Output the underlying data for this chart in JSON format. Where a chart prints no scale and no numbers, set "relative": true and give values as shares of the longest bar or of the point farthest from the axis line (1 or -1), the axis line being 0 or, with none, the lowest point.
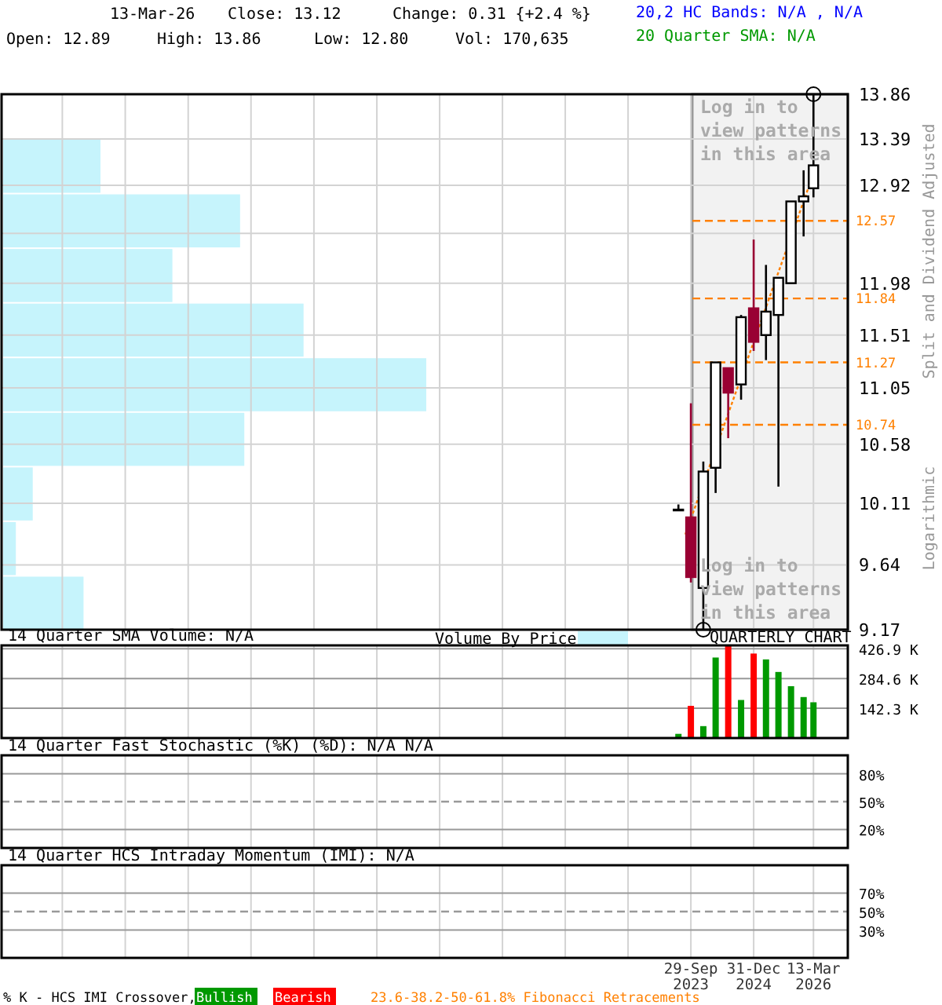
{
  "chart_data": [
    {
      "type": "candlestick",
      "ylabel": "Split and Dividend Adjusted",
      "log": true,
      "ylim": [
        9.17,
        13.86
      ],
      "yticks": [
        13.86,
        13.39,
        12.92,
        {
          "value": 12.45,
          "label": null
        },
        11.98,
        11.51,
        11.05,
        10.58,
        10.11,
        9.64,
        9.17
      ],
      "xlim": [
        "2009-12-13",
        "2026-11-19"
      ],
      "xticks": [
        {
          "value": "2011-03-02",
          "label": null
        },
        {
          "value": "2012-06-04",
          "label": null
        },
        {
          "value": "2013-09-07",
          "label": null
        },
        {
          "value": "2014-12-10",
          "label": null
        },
        {
          "value": "2016-03-14",
          "label": null
        },
        {
          "value": "2017-06-17",
          "label": null
        },
        {
          "value": "2018-09-19",
          "label": null
        },
        {
          "value": "2019-12-22",
          "label": null
        },
        {
          "value": "2021-03-25",
          "label": null
        },
        {
          "value": "2022-06-27",
          "label": null
        },
        {
          "value": "2023-09-29",
          "label": null
        },
        {
          "value": "2024-12-31",
          "label": null
        },
        {
          "value": "2026-03-13",
          "label": null
        }
      ],
      "tick_labels": "y",
      "grid": true,
      "annotations": [
        "13-Mar-26",
        "Close: 13.12",
        "Change: 0.31 {+2.4 %}",
        "Open: 12.89",
        "High: 13.86",
        "Low: 12.80",
        "Vol: 170,635",
        "20,2 HC Bands: N/A , N/A",
        "20 Quarter SMA: N/A",
        "Log in to view patterns in this area",
        "Logarithmic"
      ],
      "bands": [
        {
          "axis": "x",
          "from": "2023-10-10",
          "to": "2026-11-19",
          "label": "Log in to view patterns in this area",
          "color": "#f2f2f2"
        }
      ],
      "ref_lines": [
        {
          "axis": "y",
          "value": 12.57,
          "label": "12.57",
          "color": "#ff8000",
          "line_style": "dashed"
        },
        {
          "axis": "y",
          "value": 11.84,
          "label": "11.84",
          "color": "#ff8000",
          "line_style": "dashed"
        },
        {
          "axis": "y",
          "value": 11.27,
          "label": "11.27",
          "color": "#ff8000",
          "line_style": "dashed"
        },
        {
          "axis": "y",
          "value": 10.74,
          "label": "10.74",
          "color": "#ff8000",
          "line_style": "dashed"
        }
      ],
      "series": [
        {
          "type": "line",
          "x": [
            "2023-08-20",
            "2026-02-08"
          ],
          "values": [
            9.87,
            12.91
          ],
          "color": "#ff8000",
          "line_style": "dotted",
          "marker": "none"
        },
        {
          "x": [
            "2023-06-30",
            "2023-09-29",
            "2023-12-29",
            "2024-03-28",
            "2024-06-28",
            "2024-09-30",
            "2024-12-31",
            "2025-03-31",
            "2025-06-30",
            "2025-09-30",
            "2025-12-31",
            "2026-03-13"
          ],
          "ohlc": [
            [
              10.06,
              10.1,
              10.06,
              10.06
            ],
            [
              10.0,
              10.92,
              9.51,
              9.55
            ],
            [
              9.47,
              10.44,
              9.17,
              10.36
            ],
            [
              10.39,
              11.27,
              10.19,
              11.27
            ],
            [
              11.22,
              11.22,
              10.63,
              11.01
            ],
            [
              11.08,
              11.69,
              10.95,
              11.67
            ],
            [
              11.75,
              12.39,
              11.37,
              11.45
            ],
            [
              11.51,
              12.15,
              11.29,
              11.72
            ],
            [
              11.69,
              12.03,
              10.24,
              12.03
            ],
            [
              11.98,
              12.76,
              11.98,
              12.76
            ],
            [
              12.76,
              13.07,
              12.42,
              12.81
            ],
            [
              12.89,
              13.86,
              12.8,
              13.12
            ]
          ],
          "colors": [
            "#ffffff",
            "#990033",
            "#ffffff",
            "#ffffff",
            "#990033",
            "#ffffff",
            "#990033",
            "#ffffff",
            "#ffffff",
            "#ffffff",
            "#ffffff",
            "#ffffff"
          ]
        },
        {
          "type": "scatter",
          "x": [
            "2023-12-29",
            "2026-03-13"
          ],
          "values": [
            9.17,
            13.86
          ],
          "color": "#000000",
          "marker": "circle"
        }
      ]
    },
    {
      "type": "bar",
      "orientation": "horizontal",
      "relative": true,
      "legend": "bottom",
      "categories": [
        null,
        null,
        null,
        null,
        null,
        null,
        null,
        null,
        null
      ],
      "series": [
        {
          "name": "Volume By Price",
          "color": "#c6f4fc",
          "values": [
            0.23,
            0.56,
            0.4,
            0.71,
            1,
            0.57,
            0.07,
            0.03,
            0.19
          ]
        }
      ]
    },
    {
      "type": "bar",
      "title": "14 Quarter SMA Volume: N/A",
      "annotations": [
        "QUARTERLY CHART"
      ],
      "x": [
        "2023-06-30",
        "2023-09-29",
        "2023-12-29",
        "2024-03-28",
        "2024-06-28",
        "2024-09-30",
        "2024-12-31",
        "2025-03-31",
        "2025-06-30",
        "2025-09-30",
        "2025-12-31",
        "2026-03-13"
      ],
      "values": [
        20,
        154,
        57,
        385,
        440,
        182,
        404,
        376,
        316,
        248,
        196,
        171
      ],
      "colors": [
        "#009900",
        "#ff0000",
        "#009900",
        "#009900",
        "#ff0000",
        "#009900",
        "#ff0000",
        "#009900",
        "#009900",
        "#009900",
        "#009900",
        "#009900"
      ],
      "ylim": [
        0,
        443
      ],
      "yticks": [
        {
          "value": 426.9,
          "label": "426.9 K"
        },
        {
          "value": 284.6,
          "label": "284.6 K"
        },
        {
          "value": 142.3,
          "label": "142.3 K"
        }
      ],
      "xlim": [
        "2009-12-13",
        "2026-11-19"
      ],
      "xticks": [
        {
          "value": "2011-03-02",
          "label": null
        },
        {
          "value": "2012-06-04",
          "label": null
        },
        {
          "value": "2013-09-07",
          "label": null
        },
        {
          "value": "2014-12-10",
          "label": null
        },
        {
          "value": "2016-03-14",
          "label": null
        },
        {
          "value": "2017-06-17",
          "label": null
        },
        {
          "value": "2018-09-19",
          "label": null
        },
        {
          "value": "2019-12-22",
          "label": null
        },
        {
          "value": "2021-03-25",
          "label": null
        },
        {
          "value": "2022-06-27",
          "label": null
        },
        {
          "value": "2023-09-29",
          "label": null
        },
        {
          "value": "2024-12-31",
          "label": null
        },
        {
          "value": "2026-03-13",
          "label": null
        }
      ],
      "grid": true,
      "tick_labels": "y"
    },
    {
      "type": "line",
      "title": "14 Quarter Fast Stochastic (%K) (%D): N/A  N/A",
      "ylim": [
        0,
        100
      ],
      "yticks": [
        {
          "value": 80,
          "label": "80%"
        },
        {
          "value": 50,
          "label": "50%"
        },
        {
          "value": 20,
          "label": "20%"
        }
      ],
      "xlim": [
        "2009-12-13",
        "2026-11-19"
      ],
      "xticks": [
        {
          "value": "2011-03-02",
          "label": null
        },
        {
          "value": "2012-06-04",
          "label": null
        },
        {
          "value": "2013-09-07",
          "label": null
        },
        {
          "value": "2014-12-10",
          "label": null
        },
        {
          "value": "2016-03-14",
          "label": null
        },
        {
          "value": "2017-06-17",
          "label": null
        },
        {
          "value": "2018-09-19",
          "label": null
        },
        {
          "value": "2019-12-22",
          "label": null
        },
        {
          "value": "2021-03-25",
          "label": null
        },
        {
          "value": "2022-06-27",
          "label": null
        },
        {
          "value": "2023-09-29",
          "label": null
        },
        {
          "value": "2024-12-31",
          "label": null
        },
        {
          "value": "2026-03-13",
          "label": null
        }
      ],
      "grid": true,
      "tick_labels": "y",
      "ref_lines": [
        {
          "axis": "y",
          "value": 50,
          "color": "#999999",
          "line_style": "dashed"
        }
      ]
    },
    {
      "type": "line",
      "title": "14 Quarter HCS Intraday Momentum (IMI): N/A",
      "ylim": [
        0,
        100
      ],
      "yticks": [
        {
          "value": 70,
          "label": "70%"
        },
        {
          "value": 50,
          "label": "50%"
        },
        {
          "value": 30,
          "label": "30%"
        }
      ],
      "xlim": [
        "2009-12-13",
        "2026-11-19"
      ],
      "xticks": [
        {
          "value": "2011-03-02",
          "label": null
        },
        {
          "value": "2012-06-04",
          "label": null
        },
        {
          "value": "2013-09-07",
          "label": null
        },
        {
          "value": "2014-12-10",
          "label": null
        },
        {
          "value": "2016-03-14",
          "label": null
        },
        {
          "value": "2017-06-17",
          "label": null
        },
        {
          "value": "2018-09-19",
          "label": null
        },
        {
          "value": "2019-12-22",
          "label": null
        },
        {
          "value": "2021-03-25",
          "label": null
        },
        {
          "value": "2022-06-27",
          "label": null
        },
        {
          "value": "2023-09-29",
          "label": "29-Sep 2023"
        },
        {
          "value": "2024-12-31",
          "label": "31-Dec 2024"
        },
        {
          "value": "2026-03-13",
          "label": "13-Mar 2026"
        }
      ],
      "grid": true,
      "ref_lines": [
        {
          "axis": "y",
          "value": 50,
          "color": "#999999",
          "line_style": "dashed"
        }
      ],
      "annotations": [
        "% K - HCS IMI Crossover,",
        "Bullish",
        "Bearish",
        "23.6-38.2-50-61.8% Fibonacci Retracements"
      ]
    }
  ]
}
